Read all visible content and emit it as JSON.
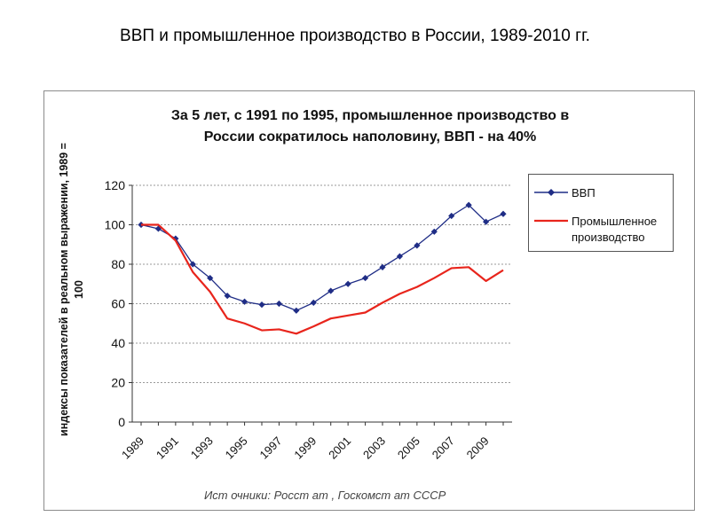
{
  "page": {
    "title": "ВВП и промышленное производство в России, 1989-2010 гг."
  },
  "chart_data": {
    "type": "line",
    "title_lines": [
      "За 5 лет, с 1991 по 1995, промышленное производство в",
      "России сократилось наполовину, ВВП - на 40%"
    ],
    "ylabel_lines": [
      "индексы показателей в реальном выражении, 1989 =",
      "100"
    ],
    "xlabel": "",
    "x": [
      1989,
      1990,
      1991,
      1992,
      1993,
      1994,
      1995,
      1996,
      1997,
      1998,
      1999,
      2000,
      2001,
      2002,
      2003,
      2004,
      2005,
      2006,
      2007,
      2008,
      2009,
      2010
    ],
    "x_tick_labels": [
      "1989",
      "1991",
      "1993",
      "1995",
      "1997",
      "1999",
      "2001",
      "2003",
      "2005",
      "2007",
      "2009"
    ],
    "ylim": [
      0,
      120
    ],
    "y_ticks": [
      0,
      20,
      40,
      60,
      80,
      100,
      120
    ],
    "grid": true,
    "legend_position": "right",
    "series": [
      {
        "name": "ВВП",
        "color": "#1f2d86",
        "marker": "diamond",
        "values": [
          100,
          98,
          93,
          80,
          73,
          64,
          61,
          59.5,
          60,
          56.5,
          60.5,
          66.5,
          70,
          73,
          78.5,
          84,
          89.5,
          96.5,
          104.5,
          110,
          101.5,
          105.5
        ]
      },
      {
        "name": "Промышленное производство",
        "color": "#e8251c",
        "marker": "none",
        "values": [
          100,
          100,
          92,
          76,
          66,
          52.5,
          50,
          46.5,
          47,
          44.8,
          48.5,
          52.5,
          54,
          55.5,
          60.5,
          65,
          68.5,
          73,
          78,
          78.5,
          71.5,
          77
        ]
      }
    ],
    "legend_lines": {
      "s0": [
        "ВВП"
      ],
      "s1": [
        "Промышленное",
        "производство"
      ]
    },
    "source_note": "Ист очники: Росст ат , Госкомст ат СССР"
  }
}
